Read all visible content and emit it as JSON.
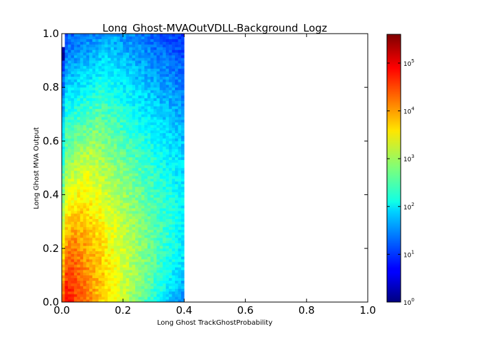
{
  "chart_data": {
    "type": "heatmap",
    "title": "Long_Ghost-MVAOutVDLL-Background_Logz",
    "xlabel": "Long Ghost TrackGhostProbability",
    "ylabel": "Long Ghost MVA Output",
    "xlim": [
      0.0,
      1.0
    ],
    "ylim": [
      0.0,
      1.0
    ],
    "x_ticks": [
      "0.0",
      "0.2",
      "0.4",
      "0.6",
      "0.8",
      "1.0"
    ],
    "y_ticks": [
      "0.0",
      "0.2",
      "0.4",
      "0.6",
      "0.8",
      "1.0"
    ],
    "colorscale": "jet",
    "color_scale_type": "log",
    "colorbar": {
      "range": [
        1,
        400000
      ],
      "ticks": [
        {
          "base": "10",
          "exp": "0",
          "value": 1
        },
        {
          "base": "10",
          "exp": "1",
          "value": 10
        },
        {
          "base": "10",
          "exp": "2",
          "value": 100
        },
        {
          "base": "10",
          "exp": "3",
          "value": 1000
        },
        {
          "base": "10",
          "exp": "4",
          "value": 10000
        },
        {
          "base": "10",
          "exp": "5",
          "value": 100000
        }
      ]
    },
    "bins": {
      "nx": 100,
      "ny": 100,
      "x_range": [
        0.0,
        1.0
      ],
      "y_range": [
        0.0,
        1.0
      ]
    },
    "populated_x_range": [
      0.0,
      0.4
    ],
    "peak_region": {
      "x": [
        0.0,
        0.02
      ],
      "y": [
        0.0,
        0.05
      ],
      "approx_count": 100000
    },
    "colors": {
      "background": "#ffffff",
      "empty_bin": "#ffffff"
    }
  }
}
